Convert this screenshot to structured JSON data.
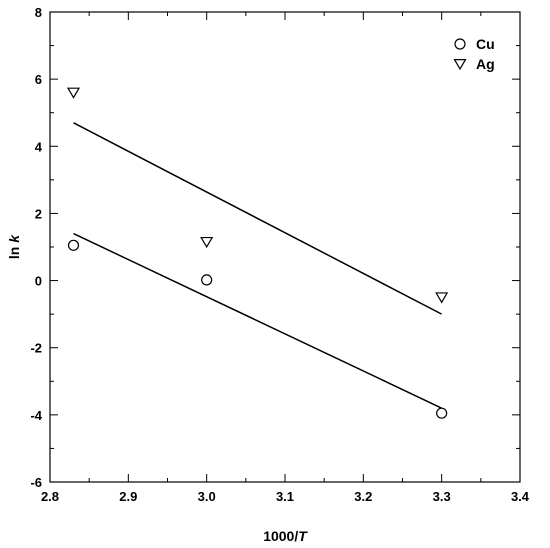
{
  "chart_data": {
    "type": "scatter",
    "title": "",
    "xlabel_prefix": "1000/",
    "xlabel_italic": "T",
    "ylabel_prefix": "ln ",
    "ylabel_italic": "k",
    "xlim": [
      2.8,
      3.4
    ],
    "ylim": [
      -6,
      8
    ],
    "x_ticks": [
      "2.8",
      "2.9",
      "3.0",
      "3.1",
      "3.2",
      "3.3",
      "3.4"
    ],
    "y_ticks": [
      "-6",
      "-4",
      "-2",
      "0",
      "2",
      "4",
      "6",
      "8"
    ],
    "grid": false,
    "legend_position": "top-right",
    "series": [
      {
        "name": "Cu",
        "marker": "circle",
        "x": [
          2.83,
          3.0,
          3.3
        ],
        "y": [
          1.05,
          0.02,
          -3.95
        ],
        "fit": {
          "x": [
            2.83,
            3.3
          ],
          "y": [
            1.4,
            -3.8
          ]
        }
      },
      {
        "name": "Ag",
        "marker": "triangle-down",
        "x": [
          2.83,
          3.0,
          3.3
        ],
        "y": [
          5.6,
          1.15,
          -0.5
        ],
        "fit": {
          "x": [
            2.83,
            3.3
          ],
          "y": [
            4.7,
            -1.0
          ]
        }
      }
    ]
  }
}
